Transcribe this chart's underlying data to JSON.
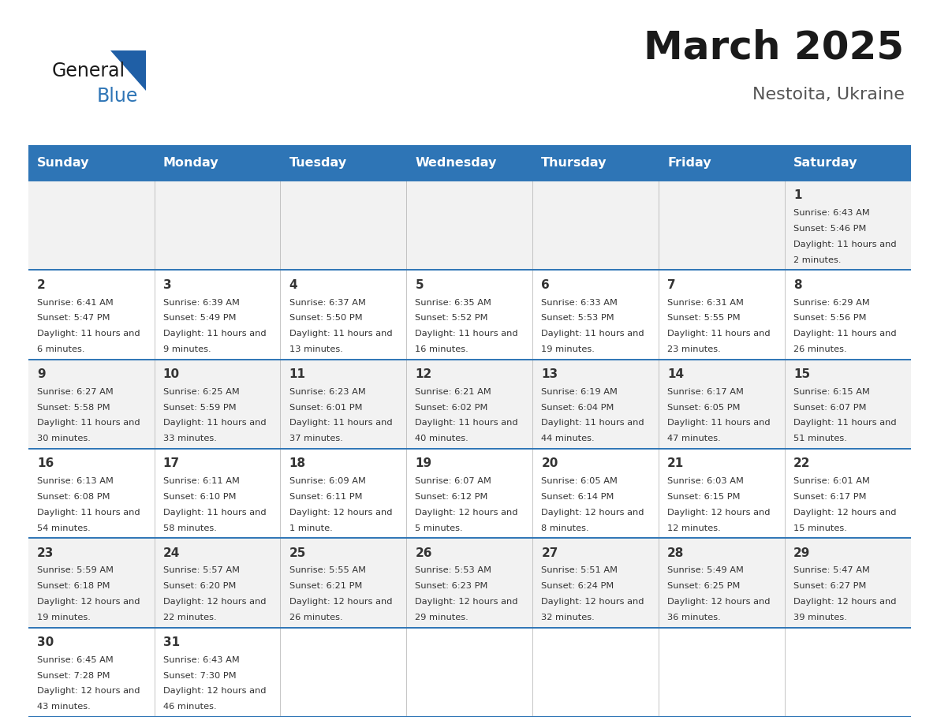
{
  "title": "March 2025",
  "subtitle": "Nestoita, Ukraine",
  "header_bg": "#2E75B6",
  "header_text_color": "#FFFFFF",
  "cell_bg_odd": "#F2F2F2",
  "cell_bg_even": "#FFFFFF",
  "border_color": "#2E75B6",
  "text_color": "#333333",
  "day_headers": [
    "Sunday",
    "Monday",
    "Tuesday",
    "Wednesday",
    "Thursday",
    "Friday",
    "Saturday"
  ],
  "days": [
    {
      "day": 1,
      "col": 6,
      "row": 0,
      "sunrise": "6:43 AM",
      "sunset": "5:46 PM",
      "daylight": "11 hours and 2 minutes."
    },
    {
      "day": 2,
      "col": 0,
      "row": 1,
      "sunrise": "6:41 AM",
      "sunset": "5:47 PM",
      "daylight": "11 hours and 6 minutes."
    },
    {
      "day": 3,
      "col": 1,
      "row": 1,
      "sunrise": "6:39 AM",
      "sunset": "5:49 PM",
      "daylight": "11 hours and 9 minutes."
    },
    {
      "day": 4,
      "col": 2,
      "row": 1,
      "sunrise": "6:37 AM",
      "sunset": "5:50 PM",
      "daylight": "11 hours and 13 minutes."
    },
    {
      "day": 5,
      "col": 3,
      "row": 1,
      "sunrise": "6:35 AM",
      "sunset": "5:52 PM",
      "daylight": "11 hours and 16 minutes."
    },
    {
      "day": 6,
      "col": 4,
      "row": 1,
      "sunrise": "6:33 AM",
      "sunset": "5:53 PM",
      "daylight": "11 hours and 19 minutes."
    },
    {
      "day": 7,
      "col": 5,
      "row": 1,
      "sunrise": "6:31 AM",
      "sunset": "5:55 PM",
      "daylight": "11 hours and 23 minutes."
    },
    {
      "day": 8,
      "col": 6,
      "row": 1,
      "sunrise": "6:29 AM",
      "sunset": "5:56 PM",
      "daylight": "11 hours and 26 minutes."
    },
    {
      "day": 9,
      "col": 0,
      "row": 2,
      "sunrise": "6:27 AM",
      "sunset": "5:58 PM",
      "daylight": "11 hours and 30 minutes."
    },
    {
      "day": 10,
      "col": 1,
      "row": 2,
      "sunrise": "6:25 AM",
      "sunset": "5:59 PM",
      "daylight": "11 hours and 33 minutes."
    },
    {
      "day": 11,
      "col": 2,
      "row": 2,
      "sunrise": "6:23 AM",
      "sunset": "6:01 PM",
      "daylight": "11 hours and 37 minutes."
    },
    {
      "day": 12,
      "col": 3,
      "row": 2,
      "sunrise": "6:21 AM",
      "sunset": "6:02 PM",
      "daylight": "11 hours and 40 minutes."
    },
    {
      "day": 13,
      "col": 4,
      "row": 2,
      "sunrise": "6:19 AM",
      "sunset": "6:04 PM",
      "daylight": "11 hours and 44 minutes."
    },
    {
      "day": 14,
      "col": 5,
      "row": 2,
      "sunrise": "6:17 AM",
      "sunset": "6:05 PM",
      "daylight": "11 hours and 47 minutes."
    },
    {
      "day": 15,
      "col": 6,
      "row": 2,
      "sunrise": "6:15 AM",
      "sunset": "6:07 PM",
      "daylight": "11 hours and 51 minutes."
    },
    {
      "day": 16,
      "col": 0,
      "row": 3,
      "sunrise": "6:13 AM",
      "sunset": "6:08 PM",
      "daylight": "11 hours and 54 minutes."
    },
    {
      "day": 17,
      "col": 1,
      "row": 3,
      "sunrise": "6:11 AM",
      "sunset": "6:10 PM",
      "daylight": "11 hours and 58 minutes."
    },
    {
      "day": 18,
      "col": 2,
      "row": 3,
      "sunrise": "6:09 AM",
      "sunset": "6:11 PM",
      "daylight": "12 hours and 1 minute."
    },
    {
      "day": 19,
      "col": 3,
      "row": 3,
      "sunrise": "6:07 AM",
      "sunset": "6:12 PM",
      "daylight": "12 hours and 5 minutes."
    },
    {
      "day": 20,
      "col": 4,
      "row": 3,
      "sunrise": "6:05 AM",
      "sunset": "6:14 PM",
      "daylight": "12 hours and 8 minutes."
    },
    {
      "day": 21,
      "col": 5,
      "row": 3,
      "sunrise": "6:03 AM",
      "sunset": "6:15 PM",
      "daylight": "12 hours and 12 minutes."
    },
    {
      "day": 22,
      "col": 6,
      "row": 3,
      "sunrise": "6:01 AM",
      "sunset": "6:17 PM",
      "daylight": "12 hours and 15 minutes."
    },
    {
      "day": 23,
      "col": 0,
      "row": 4,
      "sunrise": "5:59 AM",
      "sunset": "6:18 PM",
      "daylight": "12 hours and 19 minutes."
    },
    {
      "day": 24,
      "col": 1,
      "row": 4,
      "sunrise": "5:57 AM",
      "sunset": "6:20 PM",
      "daylight": "12 hours and 22 minutes."
    },
    {
      "day": 25,
      "col": 2,
      "row": 4,
      "sunrise": "5:55 AM",
      "sunset": "6:21 PM",
      "daylight": "12 hours and 26 minutes."
    },
    {
      "day": 26,
      "col": 3,
      "row": 4,
      "sunrise": "5:53 AM",
      "sunset": "6:23 PM",
      "daylight": "12 hours and 29 minutes."
    },
    {
      "day": 27,
      "col": 4,
      "row": 4,
      "sunrise": "5:51 AM",
      "sunset": "6:24 PM",
      "daylight": "12 hours and 32 minutes."
    },
    {
      "day": 28,
      "col": 5,
      "row": 4,
      "sunrise": "5:49 AM",
      "sunset": "6:25 PM",
      "daylight": "12 hours and 36 minutes."
    },
    {
      "day": 29,
      "col": 6,
      "row": 4,
      "sunrise": "5:47 AM",
      "sunset": "6:27 PM",
      "daylight": "12 hours and 39 minutes."
    },
    {
      "day": 30,
      "col": 0,
      "row": 5,
      "sunrise": "6:45 AM",
      "sunset": "7:28 PM",
      "daylight": "12 hours and 43 minutes."
    },
    {
      "day": 31,
      "col": 1,
      "row": 5,
      "sunrise": "6:43 AM",
      "sunset": "7:30 PM",
      "daylight": "12 hours and 46 minutes."
    }
  ],
  "fig_width": 11.88,
  "fig_height": 9.18,
  "logo_general_color": "#1a1a1a",
  "logo_blue_color": "#2E75B6",
  "logo_triangle_color": "#1F5FA6",
  "title_color": "#1a1a1a",
  "subtitle_color": "#555555"
}
